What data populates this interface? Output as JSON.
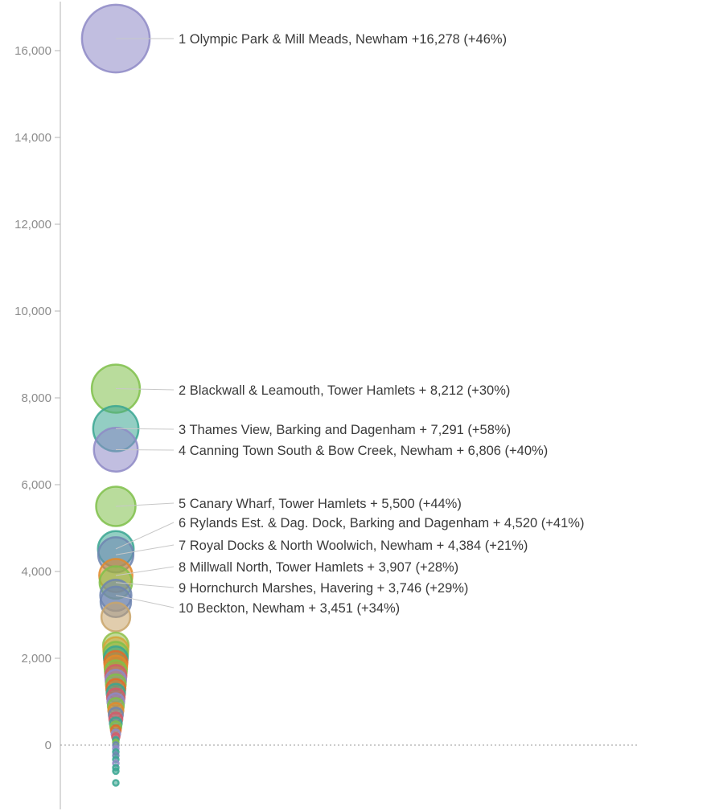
{
  "chart_data": {
    "type": "scatter",
    "title": "",
    "xlabel": "",
    "ylabel": "",
    "ylim": [
      -1500,
      17000
    ],
    "grid": false,
    "legend": "none",
    "y_ticks": [
      {
        "value": 16000,
        "label": "16,000"
      },
      {
        "value": 14000,
        "label": "14,000"
      },
      {
        "value": 12000,
        "label": "12,000"
      },
      {
        "value": 10000,
        "label": "10,000"
      },
      {
        "value": 8000,
        "label": "8,000"
      },
      {
        "value": 6000,
        "label": "6,000"
      },
      {
        "value": 4000,
        "label": "4,000"
      },
      {
        "value": 2000,
        "label": "2,000"
      },
      {
        "value": 0,
        "label": "0"
      }
    ],
    "labeled_points": [
      {
        "rank": "1",
        "name": "Olympic Park & Mill Meads,",
        "borough": "Newham",
        "change_text": "+16,278",
        "pct": "(+46%)",
        "value": 16278,
        "color": "#8e89c6"
      },
      {
        "rank": "2",
        "name": "Blackwall & Leamouth,",
        "borough": "Tower Hamlets",
        "change_text": "+ 8,212",
        "pct": "(+30%)",
        "value": 8212,
        "color": "#7fbf4a"
      },
      {
        "rank": "3",
        "name": "Thames View,",
        "borough": "Barking and Dagenham",
        "change_text": "+ 7,291",
        "pct": "(+58%)",
        "value": 7291,
        "color": "#3aa692"
      },
      {
        "rank": "4",
        "name": "Canning Town South & Bow Creek,",
        "borough": "Newham",
        "change_text": "+ 6,806",
        "pct": "(+40%)",
        "value": 6806,
        "color": "#8e89c6"
      },
      {
        "rank": "5",
        "name": "Canary Wharf,",
        "borough": "Tower Hamlets",
        "change_text": "+ 5,500",
        "pct": "(+44%)",
        "value": 5500,
        "color": "#7fbf4a"
      },
      {
        "rank": "6",
        "name": "Rylands Est. & Dag. Dock,",
        "borough": "Barking and Dagenham",
        "change_text": "+ 4,520",
        "pct": "(+41%)",
        "value": 4520,
        "color": "#3aa692"
      },
      {
        "rank": "7",
        "name": "Royal Docks & North Woolwich,",
        "borough": "Newham",
        "change_text": "+ 4,384",
        "pct": "(+21%)",
        "value": 4384,
        "color": "#6f85b0"
      },
      {
        "rank": "8",
        "name": "Millwall North,",
        "borough": "Tower Hamlets",
        "change_text": "+ 3,907",
        "pct": "(+28%)",
        "value": 3907,
        "color": "#e38a2a"
      },
      {
        "rank": "9",
        "name": "Hornchurch Marshes,",
        "borough": "Havering",
        "change_text": "+ 3,746",
        "pct": "(+29%)",
        "value": 3746,
        "color": "#7fbf4a"
      },
      {
        "rank": "10",
        "name": "Beckton,",
        "borough": "Newham",
        "change_text": "+ 3,451",
        "pct": "(+34%)",
        "value": 3451,
        "color": "#6f85b0"
      }
    ],
    "other_points": [
      {
        "value": 3300,
        "color": "#6f85b0"
      },
      {
        "value": 2950,
        "color": "#c9a46a"
      },
      {
        "value": 2300,
        "color": "#8fbf4a"
      },
      {
        "value": 2200,
        "color": "#d3a53a"
      },
      {
        "value": 2100,
        "color": "#7fbf4a"
      },
      {
        "value": 2000,
        "color": "#3aa692"
      },
      {
        "value": 1900,
        "color": "#e36b2a"
      },
      {
        "value": 1800,
        "color": "#e38a2a"
      },
      {
        "value": 1700,
        "color": "#7fbf4a"
      },
      {
        "value": 1600,
        "color": "#d35a6a"
      },
      {
        "value": 1500,
        "color": "#8e89c6"
      },
      {
        "value": 1400,
        "color": "#7fbf4a"
      },
      {
        "value": 1300,
        "color": "#e36b2a"
      },
      {
        "value": 1200,
        "color": "#3aa692"
      },
      {
        "value": 1100,
        "color": "#d35a6a"
      },
      {
        "value": 1000,
        "color": "#8e89c6"
      },
      {
        "value": 900,
        "color": "#7fbf4a"
      },
      {
        "value": 800,
        "color": "#e38a2a"
      },
      {
        "value": 700,
        "color": "#6f85b0"
      },
      {
        "value": 600,
        "color": "#d35a6a"
      },
      {
        "value": 500,
        "color": "#3aa692"
      },
      {
        "value": 420,
        "color": "#7fbf4a"
      },
      {
        "value": 340,
        "color": "#e36b2a"
      },
      {
        "value": 260,
        "color": "#8e89c6"
      },
      {
        "value": 190,
        "color": "#d35a6a"
      },
      {
        "value": 120,
        "color": "#3aa692"
      },
      {
        "value": 60,
        "color": "#7fbf4a"
      },
      {
        "value": 0,
        "color": "#6f85b0"
      },
      {
        "value": -80,
        "color": "#8e89c6"
      },
      {
        "value": -160,
        "color": "#3aa692"
      },
      {
        "value": -240,
        "color": "#6f85b0"
      },
      {
        "value": -330,
        "color": "#3aa692"
      },
      {
        "value": -420,
        "color": "#8e89c6"
      },
      {
        "value": -520,
        "color": "#3aa692"
      },
      {
        "value": -600,
        "color": "#3aa692"
      },
      {
        "value": -870,
        "color": "#3aa692"
      }
    ]
  }
}
